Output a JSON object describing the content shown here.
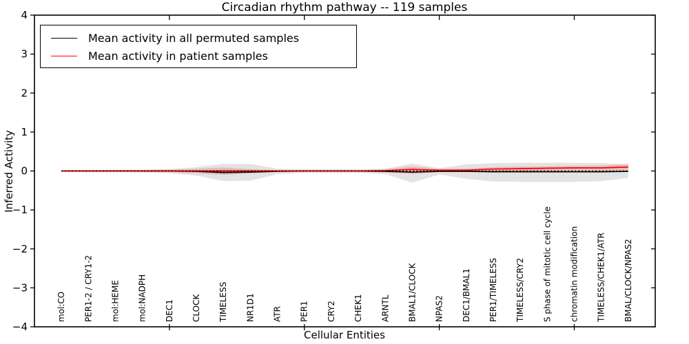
{
  "window": {
    "background": "#ffffff"
  },
  "legend": {
    "position": "upper left",
    "items": [
      {
        "label": "Mean activity in all permuted samples",
        "color": "#000000"
      },
      {
        "label": "Mean activity in patient samples",
        "color": "#ff0000"
      }
    ]
  },
  "chart_data": {
    "type": "line",
    "title": "Circadian rhythm pathway -- 119 samples",
    "xlabel": "Cellular Entities",
    "ylabel": "Inferred Activity",
    "ylim": [
      -4,
      4
    ],
    "xlim": [
      0,
      23
    ],
    "grid": false,
    "categories": [
      "mol:CO",
      "PER1-2 / CRY1-2",
      "mol:HEME",
      "mol:NADPH",
      "DEC1",
      "CLOCK",
      "TIMELESS",
      "NR1D1",
      "ATR",
      "PER1",
      "CRY2",
      "CHEK1",
      "ARNTL",
      "BMAL1/CLOCK",
      "NPAS2",
      "DEC1/BMAL1",
      "PER1/TIMELESS",
      "TIMELESS/CRY2",
      "S phase of mitotic cell cycle",
      "chromatin modification",
      "TIMELESS/CHEK1/ATR",
      "BMAL/CLOCK/NPAS2"
    ],
    "x_positions": [
      1,
      2,
      3,
      4,
      5,
      6,
      7,
      8,
      9,
      10,
      11,
      12,
      13,
      14,
      15,
      16,
      17,
      18,
      19,
      20,
      21,
      22
    ],
    "xticks_at": [
      5,
      10,
      15,
      20
    ],
    "yticks": [
      4,
      3,
      2,
      1,
      0,
      -1,
      -2,
      -3,
      -4
    ],
    "ytick_labels": [
      "4",
      "3",
      "2",
      "1",
      "0",
      "−1",
      "−2",
      "−3",
      "−4"
    ],
    "reference_line": {
      "y": 0,
      "style": "dotted",
      "color": "#000000"
    },
    "series": [
      {
        "name": "Mean activity in all permuted samples",
        "kind": "line",
        "color": "#000000",
        "values": [
          0,
          0,
          0,
          0,
          0,
          -0.01,
          -0.04,
          -0.03,
          -0.01,
          0,
          0,
          0,
          -0.01,
          -0.03,
          -0.01,
          -0.01,
          -0.02,
          -0.02,
          -0.02,
          -0.02,
          -0.02,
          -0.01
        ]
      },
      {
        "name": "Mean activity in patient samples",
        "kind": "line",
        "color": "#ff0000",
        "values": [
          0,
          0,
          0,
          0,
          0,
          0,
          0,
          0,
          0,
          0,
          0,
          0,
          0.01,
          0.04,
          0.02,
          0.02,
          0.05,
          0.06,
          0.07,
          0.08,
          0.08,
          0.1
        ]
      },
      {
        "name": "permuted-samples-band",
        "kind": "band",
        "color": "rgba(0,0,0,0.11)",
        "upper": [
          0.02,
          0.02,
          0.03,
          0.03,
          0.05,
          0.1,
          0.18,
          0.18,
          0.06,
          0.04,
          0.04,
          0.04,
          0.06,
          0.19,
          0.07,
          0.17,
          0.2,
          0.21,
          0.21,
          0.21,
          0.2,
          0.17
        ],
        "lower": [
          -0.02,
          -0.03,
          -0.03,
          -0.04,
          -0.06,
          -0.12,
          -0.26,
          -0.25,
          -0.08,
          -0.05,
          -0.05,
          -0.05,
          -0.08,
          -0.3,
          -0.09,
          -0.2,
          -0.27,
          -0.28,
          -0.28,
          -0.28,
          -0.26,
          -0.18
        ]
      },
      {
        "name": "patient-samples-band",
        "kind": "band",
        "color": "rgba(255,0,0,0.18)",
        "upper": [
          0.02,
          0.02,
          0.02,
          0.02,
          0.03,
          0.06,
          0.09,
          0.05,
          0.02,
          0.02,
          0.02,
          0.02,
          0.04,
          0.12,
          0.05,
          0.06,
          0.1,
          0.11,
          0.12,
          0.13,
          0.14,
          0.18
        ],
        "lower": [
          -0.02,
          -0.02,
          -0.02,
          -0.02,
          -0.03,
          -0.06,
          -0.1,
          -0.06,
          -0.02,
          -0.02,
          -0.02,
          -0.02,
          -0.03,
          -0.08,
          -0.02,
          -0.02,
          -0.01,
          0,
          0.01,
          0.02,
          0.02,
          0.02
        ]
      }
    ]
  }
}
